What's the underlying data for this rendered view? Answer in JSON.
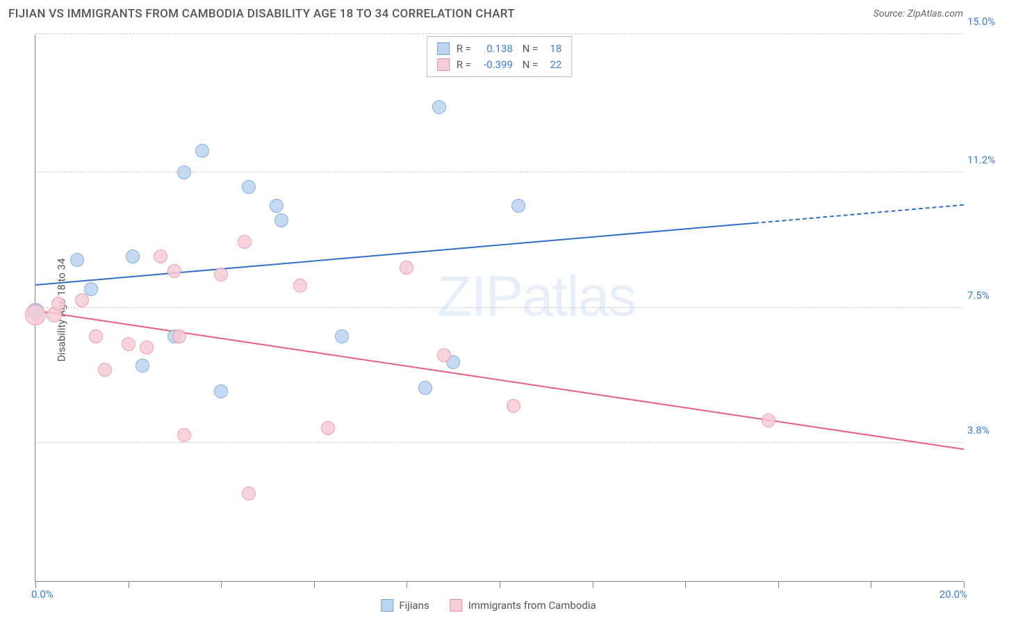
{
  "header": {
    "title": "FIJIAN VS IMMIGRANTS FROM CAMBODIA DISABILITY AGE 18 TO 34 CORRELATION CHART",
    "source": "Source: ZipAtlas.com"
  },
  "ylabel": "Disability Age 18 to 34",
  "watermark": "ZIPatlas",
  "chart": {
    "type": "scatter",
    "xlim": [
      0,
      20
    ],
    "ylim": [
      0,
      15
    ],
    "x_min_label": "0.0%",
    "x_max_label": "20.0%",
    "y_gridlines": [
      {
        "v": 3.8,
        "label": "3.8%"
      },
      {
        "v": 7.5,
        "label": "7.5%"
      },
      {
        "v": 11.2,
        "label": "11.2%"
      },
      {
        "v": 15.0,
        "label": "15.0%"
      }
    ],
    "x_ticks": [
      0,
      2,
      4,
      6,
      8,
      10,
      12,
      14,
      16,
      18,
      20
    ],
    "background_color": "#ffffff",
    "grid_color": "#cccccc",
    "axis_color": "#888888",
    "label_color": "#3b7dd8"
  },
  "series": [
    {
      "name": "Fijians",
      "fill": "#bcd4ef",
      "stroke": "#6ea3dd",
      "line_color": "#2f6fc7",
      "r_value": "0.138",
      "n_value": "18",
      "points": [
        {
          "x": 0.0,
          "y": 7.4,
          "r": 12
        },
        {
          "x": 0.9,
          "y": 8.8,
          "r": 10
        },
        {
          "x": 1.2,
          "y": 8.0,
          "r": 10
        },
        {
          "x": 2.1,
          "y": 8.9,
          "r": 10
        },
        {
          "x": 2.3,
          "y": 5.9,
          "r": 10
        },
        {
          "x": 3.0,
          "y": 6.7,
          "r": 10
        },
        {
          "x": 3.2,
          "y": 11.2,
          "r": 10
        },
        {
          "x": 3.6,
          "y": 11.8,
          "r": 10
        },
        {
          "x": 4.0,
          "y": 5.2,
          "r": 10
        },
        {
          "x": 4.6,
          "y": 10.8,
          "r": 10
        },
        {
          "x": 5.2,
          "y": 10.3,
          "r": 10
        },
        {
          "x": 5.3,
          "y": 9.9,
          "r": 10
        },
        {
          "x": 6.6,
          "y": 6.7,
          "r": 10
        },
        {
          "x": 8.4,
          "y": 5.3,
          "r": 10
        },
        {
          "x": 8.7,
          "y": 13.0,
          "r": 10
        },
        {
          "x": 9.0,
          "y": 6.0,
          "r": 10
        },
        {
          "x": 10.4,
          "y": 10.3,
          "r": 10
        }
      ],
      "trend": {
        "x1": 0,
        "y1": 8.1,
        "x2": 15.5,
        "y2": 9.8,
        "x3": 20,
        "y3": 10.3
      }
    },
    {
      "name": "Immigrants from Cambodia",
      "fill": "#f6cdd6",
      "stroke": "#e890a3",
      "line_color": "#e95f82",
      "r_value": "-0.399",
      "n_value": "22",
      "points": [
        {
          "x": 0.0,
          "y": 7.3,
          "r": 15
        },
        {
          "x": 0.4,
          "y": 7.3,
          "r": 11
        },
        {
          "x": 0.5,
          "y": 7.6,
          "r": 10
        },
        {
          "x": 1.0,
          "y": 7.7,
          "r": 10
        },
        {
          "x": 1.3,
          "y": 6.7,
          "r": 10
        },
        {
          "x": 1.5,
          "y": 5.8,
          "r": 10
        },
        {
          "x": 2.0,
          "y": 6.5,
          "r": 10
        },
        {
          "x": 2.4,
          "y": 6.4,
          "r": 10
        },
        {
          "x": 2.7,
          "y": 8.9,
          "r": 10
        },
        {
          "x": 3.0,
          "y": 8.5,
          "r": 10
        },
        {
          "x": 3.1,
          "y": 6.7,
          "r": 10
        },
        {
          "x": 3.2,
          "y": 4.0,
          "r": 10
        },
        {
          "x": 4.0,
          "y": 8.4,
          "r": 10
        },
        {
          "x": 4.5,
          "y": 9.3,
          "r": 10
        },
        {
          "x": 4.6,
          "y": 2.4,
          "r": 10
        },
        {
          "x": 5.7,
          "y": 8.1,
          "r": 10
        },
        {
          "x": 6.3,
          "y": 4.2,
          "r": 10
        },
        {
          "x": 8.0,
          "y": 8.6,
          "r": 10
        },
        {
          "x": 8.8,
          "y": 6.2,
          "r": 10
        },
        {
          "x": 10.3,
          "y": 4.8,
          "r": 10
        },
        {
          "x": 15.8,
          "y": 4.4,
          "r": 10
        }
      ],
      "trend": {
        "x1": 0,
        "y1": 7.4,
        "x2": 20,
        "y2": 3.6,
        "x3": 20,
        "y3": 3.6
      }
    }
  ],
  "legend": {
    "items": [
      {
        "label": "Fijians",
        "fill": "#bcd4ef",
        "stroke": "#6ea3dd"
      },
      {
        "label": "Immigrants from Cambodia",
        "fill": "#f6cdd6",
        "stroke": "#e890a3"
      }
    ]
  }
}
